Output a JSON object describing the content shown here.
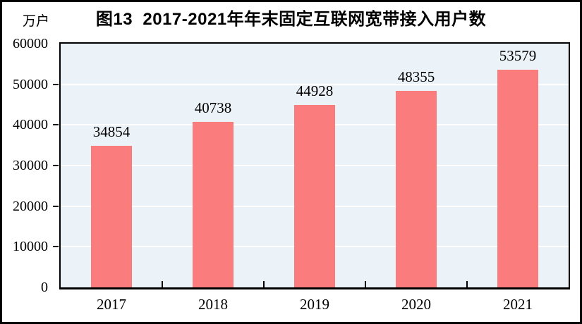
{
  "chart_data": {
    "type": "bar",
    "title": "图13  2017-2021年年末固定互联网宽带接入用户数",
    "unit": "万户",
    "categories": [
      "2017",
      "2018",
      "2019",
      "2020",
      "2021"
    ],
    "values": [
      34854,
      40738,
      44928,
      48355,
      53579
    ],
    "ylim": [
      0,
      60000
    ],
    "yticks": [
      0,
      10000,
      20000,
      30000,
      40000,
      50000,
      60000
    ],
    "grid": true,
    "legend_position": "none",
    "colors": {
      "bar": "#FB7C7C",
      "plot_background": "#ECF3F8",
      "gridline": "#FFFFFF",
      "axis": "#000000",
      "text": "#000000",
      "outer_background": "#FFFFFF"
    }
  }
}
